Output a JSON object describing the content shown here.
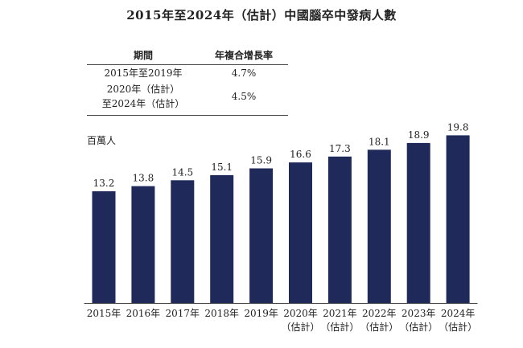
{
  "title": "2015年至2024年（估計）中國腦卒中發病人數",
  "cagr_table": {
    "headers": [
      "期間",
      "年複合增長率"
    ],
    "rows": [
      {
        "period": "2015年至2019年",
        "rate": "4.7%"
      },
      {
        "period_line1": "2020年（估計）",
        "period_line2": "至2024年（估計）",
        "rate": "4.5%"
      }
    ]
  },
  "chart_data": {
    "type": "bar",
    "title": "2015年至2024年（估計）中國腦卒中發病人數",
    "ylabel": "百萬人",
    "xlabel": "",
    "categories": [
      "2015年",
      "2016年",
      "2017年",
      "2018年",
      "2019年",
      "2020年",
      "2021年",
      "2022年",
      "2023年",
      "2024年"
    ],
    "category_notes": [
      "",
      "",
      "",
      "",
      "",
      "（估計）",
      "（估計）",
      "（估計）",
      "（估計）",
      "（估計）"
    ],
    "values": [
      13.2,
      13.8,
      14.5,
      15.1,
      15.9,
      16.6,
      17.3,
      18.1,
      18.9,
      19.8
    ],
    "value_labels": [
      "13.2",
      "13.8",
      "14.5",
      "15.1",
      "15.9",
      "16.6",
      "17.3",
      "18.1",
      "18.9",
      "19.8"
    ],
    "ylim": [
      0,
      20.6
    ],
    "grid": false,
    "legend": "none",
    "bar_color": "#1f2a5a"
  }
}
